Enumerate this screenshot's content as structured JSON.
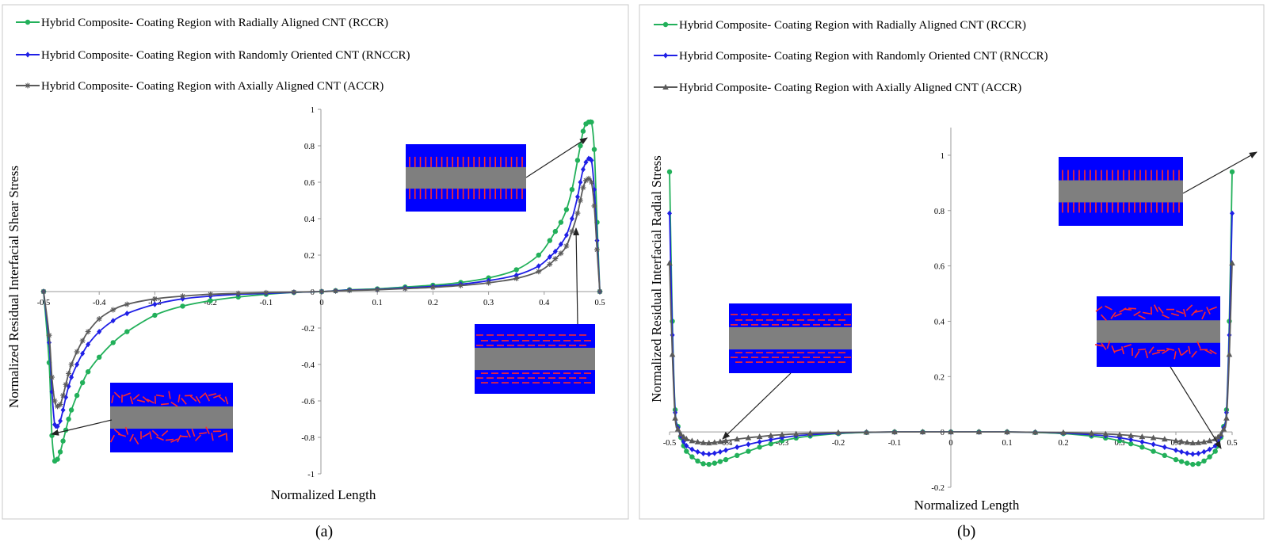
{
  "captions": [
    "(a)",
    "(b)"
  ],
  "colors": {
    "rccr": "#22b05a",
    "rnccr": "#1f1fe6",
    "accr": "#5a5a5a",
    "inset_blue": "#0000ff",
    "inset_grey": "#7f7f7f",
    "inset_red": "#ff2a2a"
  },
  "chart_data": [
    {
      "type": "line",
      "panel": "a",
      "xlabel": "Normalized  Length",
      "ylabel": "Normalized  Residual  Interfacial  Shear Stress",
      "xlim": [
        -0.5,
        0.5
      ],
      "ylim": [
        -1,
        1
      ],
      "xticks": [
        "-0.5",
        "-0.4",
        "-0.3",
        "-0.2",
        "-0.1",
        "0",
        "0.1",
        "0.2",
        "0.3",
        "0.4",
        "0.5"
      ],
      "yticks": [
        "-1",
        "-0.8",
        "-0.6",
        "-0.4",
        "-0.2",
        "0",
        "0.2",
        "0.4",
        "0.6",
        "0.8",
        "1"
      ],
      "grid": false,
      "legend_position": "top-left",
      "series": [
        {
          "name": "Hybrid Composite- Coating Region with Radially Aligned CNT (RCCR)",
          "marker": "circle",
          "x": [
            -0.5,
            -0.49,
            -0.485,
            -0.48,
            -0.475,
            -0.47,
            -0.465,
            -0.46,
            -0.455,
            -0.45,
            -0.44,
            -0.43,
            -0.42,
            -0.4,
            -0.375,
            -0.35,
            -0.3,
            -0.25,
            -0.2,
            -0.15,
            -0.1,
            -0.05,
            0,
            0.025,
            0.05,
            0.1,
            0.15,
            0.2,
            0.25,
            0.3,
            0.35,
            0.39,
            0.41,
            0.42,
            0.43,
            0.44,
            0.45,
            0.46,
            0.465,
            0.47,
            0.475,
            0.48,
            0.485,
            0.49,
            0.495,
            0.5
          ],
          "y": [
            0,
            -0.39,
            -0.79,
            -0.93,
            -0.92,
            -0.88,
            -0.82,
            -0.76,
            -0.7,
            -0.65,
            -0.57,
            -0.5,
            -0.44,
            -0.36,
            -0.28,
            -0.22,
            -0.13,
            -0.08,
            -0.05,
            -0.03,
            -0.015,
            -0.005,
            0,
            0.005,
            0.01,
            0.015,
            0.025,
            0.035,
            0.05,
            0.075,
            0.12,
            0.2,
            0.28,
            0.33,
            0.38,
            0.45,
            0.56,
            0.72,
            0.8,
            0.88,
            0.92,
            0.93,
            0.93,
            0.78,
            0.38,
            0
          ]
        },
        {
          "name": "Hybrid Composite- Coating Region with Randomly Oriented CNT (RNCCR)",
          "marker": "diamond",
          "x": [
            -0.5,
            -0.49,
            -0.485,
            -0.48,
            -0.475,
            -0.47,
            -0.465,
            -0.46,
            -0.455,
            -0.45,
            -0.44,
            -0.43,
            -0.42,
            -0.4,
            -0.375,
            -0.35,
            -0.3,
            -0.25,
            -0.2,
            -0.15,
            -0.1,
            -0.05,
            0,
            0.025,
            0.05,
            0.1,
            0.15,
            0.2,
            0.25,
            0.3,
            0.35,
            0.39,
            0.41,
            0.42,
            0.43,
            0.44,
            0.45,
            0.46,
            0.465,
            0.47,
            0.475,
            0.48,
            0.485,
            0.49,
            0.495,
            0.5
          ],
          "y": [
            0,
            -0.28,
            -0.55,
            -0.73,
            -0.74,
            -0.71,
            -0.65,
            -0.58,
            -0.52,
            -0.47,
            -0.4,
            -0.34,
            -0.29,
            -0.22,
            -0.16,
            -0.12,
            -0.07,
            -0.04,
            -0.025,
            -0.015,
            -0.01,
            -0.004,
            0,
            0.004,
            0.008,
            0.012,
            0.02,
            0.028,
            0.04,
            0.06,
            0.09,
            0.14,
            0.19,
            0.22,
            0.26,
            0.31,
            0.4,
            0.52,
            0.6,
            0.67,
            0.71,
            0.73,
            0.72,
            0.56,
            0.28,
            0
          ]
        },
        {
          "name": "Hybrid Composite- Coating Region with Axially Aligned CNT (ACCR)",
          "marker": "star",
          "x": [
            -0.5,
            -0.49,
            -0.485,
            -0.48,
            -0.475,
            -0.47,
            -0.465,
            -0.46,
            -0.455,
            -0.45,
            -0.44,
            -0.43,
            -0.42,
            -0.4,
            -0.375,
            -0.35,
            -0.3,
            -0.25,
            -0.2,
            -0.15,
            -0.1,
            -0.05,
            0,
            0.025,
            0.05,
            0.1,
            0.15,
            0.2,
            0.25,
            0.3,
            0.35,
            0.39,
            0.41,
            0.42,
            0.43,
            0.44,
            0.45,
            0.46,
            0.465,
            0.47,
            0.475,
            0.48,
            0.485,
            0.49,
            0.495,
            0.5
          ],
          "y": [
            0,
            -0.24,
            -0.47,
            -0.6,
            -0.63,
            -0.62,
            -0.57,
            -0.51,
            -0.45,
            -0.4,
            -0.33,
            -0.27,
            -0.22,
            -0.15,
            -0.1,
            -0.07,
            -0.04,
            -0.025,
            -0.015,
            -0.01,
            -0.006,
            -0.003,
            0,
            0.003,
            0.006,
            0.01,
            0.016,
            0.023,
            0.033,
            0.048,
            0.072,
            0.11,
            0.15,
            0.18,
            0.21,
            0.25,
            0.33,
            0.43,
            0.5,
            0.57,
            0.61,
            0.62,
            0.6,
            0.47,
            0.23,
            0
          ]
        }
      ]
    },
    {
      "type": "line",
      "panel": "b",
      "xlabel": "Normalized  Length",
      "ylabel": "Normalized  Residual  Interfacial  Radial Stress",
      "xlim": [
        -0.5,
        0.5
      ],
      "ylim": [
        -0.2,
        1.1
      ],
      "xticks": [
        "-0.5",
        "-0.4",
        "-0.3",
        "-0.2",
        "-0.1",
        "0",
        "0.1",
        "0.2",
        "0.3",
        "0.4",
        "0.5"
      ],
      "yticks": [
        "-0.2",
        "0",
        "0.2",
        "0.4",
        "0.6",
        "0.8",
        "1"
      ],
      "grid": false,
      "legend_position": "top-left",
      "series": [
        {
          "name": "Hybrid Composite- Coating Region with Radially Aligned CNT (RCCR)",
          "marker": "circle",
          "x": [
            -0.5,
            -0.495,
            -0.49,
            -0.485,
            -0.48,
            -0.475,
            -0.47,
            -0.46,
            -0.45,
            -0.44,
            -0.43,
            -0.42,
            -0.41,
            -0.4,
            -0.38,
            -0.36,
            -0.34,
            -0.32,
            -0.3,
            -0.275,
            -0.25,
            -0.2,
            -0.15,
            -0.1,
            -0.05,
            0,
            0.05,
            0.1,
            0.15,
            0.2,
            0.25,
            0.275,
            0.3,
            0.32,
            0.34,
            0.36,
            0.38,
            0.4,
            0.41,
            0.42,
            0.43,
            0.44,
            0.45,
            0.46,
            0.47,
            0.475,
            0.48,
            0.485,
            0.49,
            0.495,
            0.5
          ],
          "y": [
            0.94,
            0.4,
            0.08,
            0.02,
            -0.02,
            -0.05,
            -0.07,
            -0.09,
            -0.105,
            -0.115,
            -0.117,
            -0.113,
            -0.107,
            -0.1,
            -0.085,
            -0.07,
            -0.055,
            -0.043,
            -0.032,
            -0.022,
            -0.015,
            -0.006,
            -0.002,
            0,
            0,
            0,
            0,
            0,
            -0.002,
            -0.006,
            -0.015,
            -0.022,
            -0.032,
            -0.043,
            -0.055,
            -0.07,
            -0.085,
            -0.1,
            -0.107,
            -0.113,
            -0.117,
            -0.115,
            -0.105,
            -0.09,
            -0.07,
            -0.05,
            -0.02,
            0.02,
            0.08,
            0.4,
            0.94
          ]
        },
        {
          "name": "Hybrid Composite- Coating Region with Randomly Oriented CNT (RNCCR)",
          "marker": "diamond",
          "x": [
            -0.5,
            -0.495,
            -0.49,
            -0.485,
            -0.48,
            -0.475,
            -0.47,
            -0.46,
            -0.45,
            -0.44,
            -0.43,
            -0.42,
            -0.41,
            -0.4,
            -0.38,
            -0.36,
            -0.34,
            -0.32,
            -0.3,
            -0.275,
            -0.25,
            -0.2,
            -0.15,
            -0.1,
            -0.05,
            0,
            0.05,
            0.1,
            0.15,
            0.2,
            0.25,
            0.275,
            0.3,
            0.32,
            0.34,
            0.36,
            0.38,
            0.4,
            0.41,
            0.42,
            0.43,
            0.44,
            0.45,
            0.46,
            0.47,
            0.475,
            0.48,
            0.485,
            0.49,
            0.495,
            0.5
          ],
          "y": [
            0.79,
            0.35,
            0.07,
            0.015,
            -0.015,
            -0.035,
            -0.05,
            -0.063,
            -0.072,
            -0.078,
            -0.08,
            -0.077,
            -0.072,
            -0.066,
            -0.055,
            -0.045,
            -0.036,
            -0.028,
            -0.021,
            -0.014,
            -0.01,
            -0.004,
            -0.001,
            0,
            0,
            0,
            0,
            0,
            -0.001,
            -0.004,
            -0.01,
            -0.014,
            -0.021,
            -0.028,
            -0.036,
            -0.045,
            -0.055,
            -0.066,
            -0.072,
            -0.077,
            -0.08,
            -0.078,
            -0.072,
            -0.063,
            -0.05,
            -0.035,
            -0.015,
            0.015,
            0.07,
            0.35,
            0.79
          ]
        },
        {
          "name": "Hybrid Composite- Coating Region with Axially Aligned CNT (ACCR)",
          "marker": "triangle",
          "x": [
            -0.5,
            -0.495,
            -0.49,
            -0.485,
            -0.48,
            -0.475,
            -0.47,
            -0.46,
            -0.45,
            -0.44,
            -0.43,
            -0.42,
            -0.41,
            -0.4,
            -0.38,
            -0.36,
            -0.34,
            -0.32,
            -0.3,
            -0.275,
            -0.25,
            -0.2,
            -0.15,
            -0.1,
            -0.05,
            0,
            0.05,
            0.1,
            0.15,
            0.2,
            0.25,
            0.275,
            0.3,
            0.32,
            0.34,
            0.36,
            0.38,
            0.4,
            0.41,
            0.42,
            0.43,
            0.44,
            0.45,
            0.46,
            0.47,
            0.475,
            0.48,
            0.485,
            0.49,
            0.495,
            0.5
          ],
          "y": [
            0.61,
            0.28,
            0.05,
            0.01,
            -0.008,
            -0.018,
            -0.025,
            -0.032,
            -0.036,
            -0.039,
            -0.04,
            -0.038,
            -0.035,
            -0.032,
            -0.026,
            -0.021,
            -0.017,
            -0.013,
            -0.01,
            -0.007,
            -0.005,
            -0.002,
            -0.001,
            0,
            0,
            0,
            0,
            0,
            -0.001,
            -0.002,
            -0.005,
            -0.007,
            -0.01,
            -0.013,
            -0.017,
            -0.021,
            -0.026,
            -0.032,
            -0.035,
            -0.038,
            -0.04,
            -0.039,
            -0.036,
            -0.032,
            -0.025,
            -0.018,
            -0.008,
            0.01,
            0.05,
            0.28,
            0.61
          ]
        }
      ]
    }
  ]
}
